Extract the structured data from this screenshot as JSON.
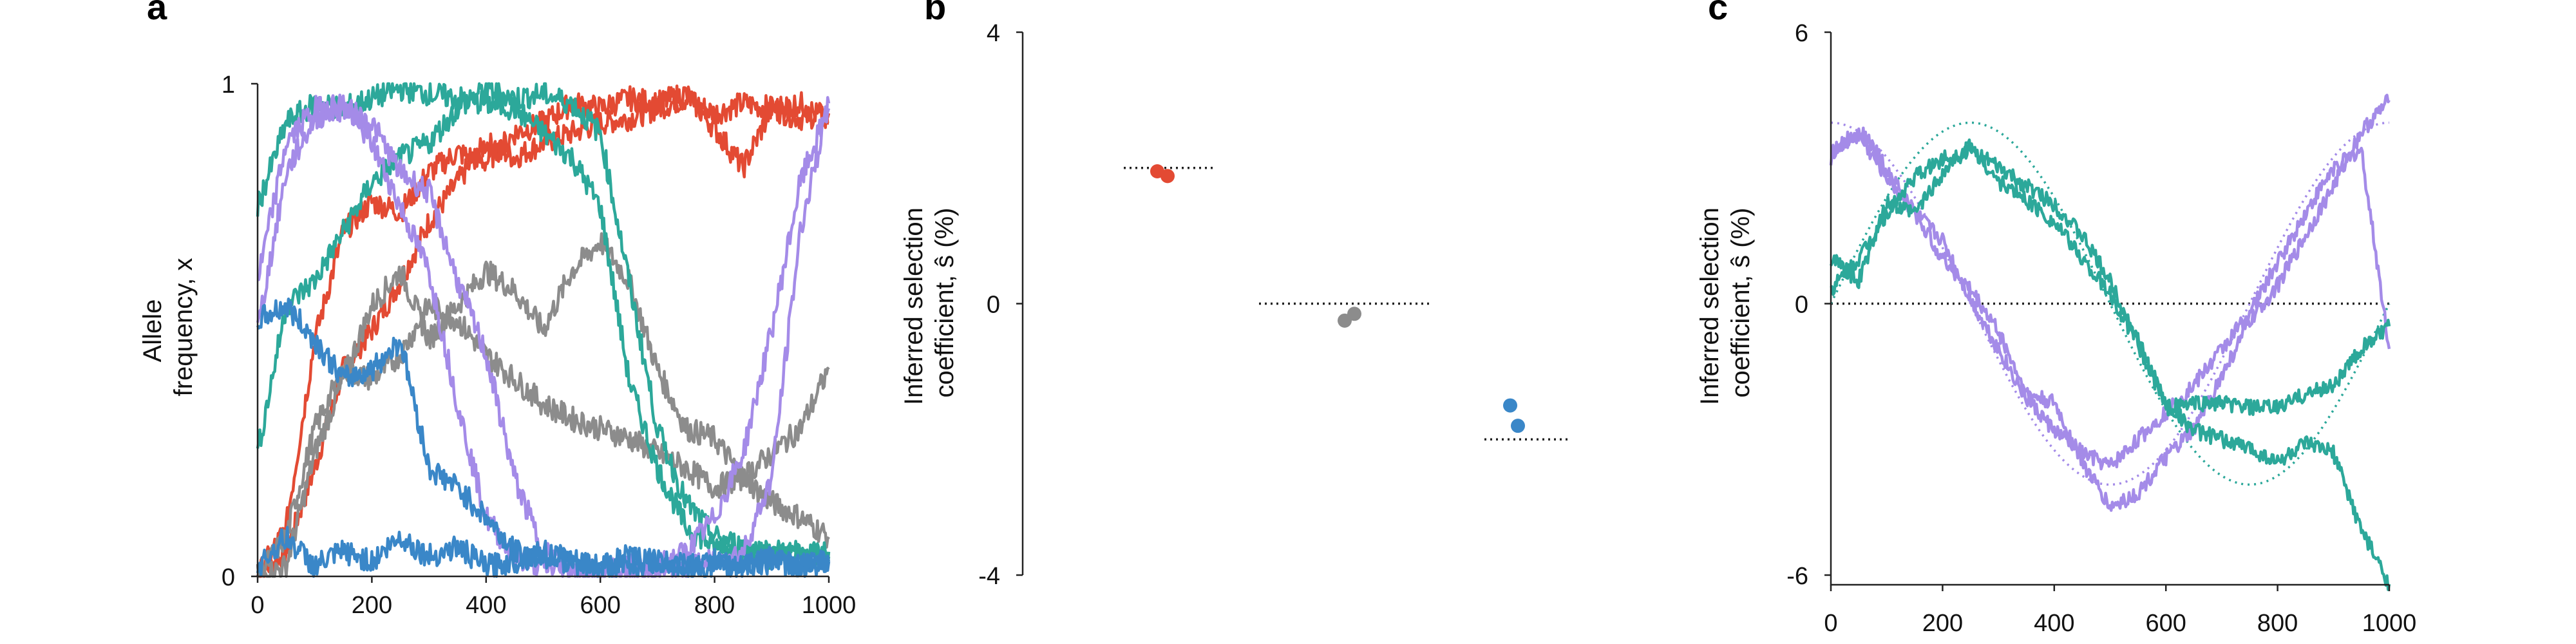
{
  "chart_data": [
    {
      "panel_label": "a",
      "type": "line",
      "ylabel": [
        "Allele",
        "frequency, x"
      ],
      "xlim": [
        0,
        1000
      ],
      "ylim": [
        0,
        1
      ],
      "x_ticks": [
        "0",
        "200",
        "400",
        "600",
        "800",
        "1000"
      ],
      "y_ticks": [
        "0",
        "1"
      ],
      "colors": {
        "red": "#e34a33",
        "gray": "#8c8c8c",
        "teal": "#2ca89a",
        "purple": "#a48be8",
        "blue": "#3a87c8"
      },
      "series": [
        {
          "color": "red",
          "x": [
            0,
            50,
            100,
            150,
            200,
            250,
            300,
            350,
            400,
            450,
            500,
            550,
            600,
            650,
            700,
            750,
            800,
            850,
            900,
            950,
            1000
          ],
          "y": [
            0.0,
            0.05,
            0.22,
            0.42,
            0.5,
            0.6,
            0.72,
            0.8,
            0.88,
            0.85,
            0.88,
            0.9,
            0.92,
            0.93,
            0.95,
            0.97,
            0.94,
            0.96,
            0.95,
            0.93,
            0.94
          ]
        },
        {
          "color": "red",
          "x": [
            0,
            50,
            100,
            150,
            200,
            250,
            300,
            350,
            400,
            450,
            500,
            550,
            600,
            650,
            700,
            750,
            800,
            850,
            900,
            950,
            1000
          ],
          "y": [
            0.0,
            0.1,
            0.48,
            0.7,
            0.76,
            0.74,
            0.82,
            0.86,
            0.84,
            0.9,
            0.92,
            0.96,
            0.95,
            0.97,
            0.96,
            0.98,
            0.91,
            0.83,
            0.95,
            0.96,
            0.92
          ]
        },
        {
          "color": "gray",
          "x": [
            0,
            50,
            100,
            150,
            200,
            250,
            300,
            350,
            400,
            450,
            500,
            550,
            600,
            650,
            700,
            750,
            800,
            850,
            900,
            950,
            1000
          ],
          "y": [
            0.0,
            0.02,
            0.25,
            0.4,
            0.55,
            0.62,
            0.48,
            0.55,
            0.62,
            0.58,
            0.5,
            0.62,
            0.68,
            0.6,
            0.42,
            0.3,
            0.28,
            0.2,
            0.15,
            0.12,
            0.08
          ]
        },
        {
          "color": "gray",
          "x": [
            0,
            50,
            100,
            150,
            200,
            250,
            300,
            350,
            400,
            450,
            500,
            550,
            600,
            650,
            700,
            750,
            800,
            850,
            900,
            950,
            1000
          ],
          "y": [
            0.0,
            0.08,
            0.3,
            0.42,
            0.4,
            0.45,
            0.55,
            0.52,
            0.45,
            0.4,
            0.35,
            0.32,
            0.3,
            0.28,
            0.25,
            0.22,
            0.18,
            0.2,
            0.25,
            0.3,
            0.42
          ]
        },
        {
          "color": "teal",
          "x": [
            0,
            50,
            100,
            150,
            200,
            250,
            300,
            350,
            400,
            450,
            500,
            550,
            600,
            650,
            700,
            750,
            800,
            850,
            900,
            950,
            1000
          ],
          "y": [
            0.75,
            0.92,
            0.96,
            0.95,
            0.97,
            0.99,
            0.98,
            0.97,
            0.96,
            0.95,
            0.9,
            0.85,
            0.75,
            0.4,
            0.22,
            0.1,
            0.06,
            0.05,
            0.04,
            0.04,
            0.05
          ]
        },
        {
          "color": "teal",
          "x": [
            0,
            50,
            100,
            150,
            200,
            250,
            300,
            350,
            400,
            450,
            500,
            550,
            600,
            650,
            700,
            750,
            800,
            850,
            900,
            950,
            1000
          ],
          "y": [
            0.25,
            0.55,
            0.6,
            0.7,
            0.8,
            0.85,
            0.88,
            0.95,
            0.99,
            0.97,
            0.98,
            0.96,
            0.9,
            0.6,
            0.3,
            0.15,
            0.08,
            0.06,
            0.05,
            0.05,
            0.04
          ]
        },
        {
          "color": "purple",
          "x": [
            0,
            50,
            100,
            150,
            200,
            250,
            300,
            350,
            400,
            450,
            500,
            550,
            600,
            650,
            700,
            750,
            800,
            850,
            900,
            950,
            1000
          ],
          "y": [
            0.5,
            0.82,
            0.93,
            0.95,
            0.92,
            0.82,
            0.78,
            0.6,
            0.45,
            0.2,
            0.05,
            0.02,
            0.01,
            0.01,
            0.02,
            0.05,
            0.12,
            0.25,
            0.5,
            0.8,
            0.95
          ]
        },
        {
          "color": "purple",
          "x": [
            0,
            50,
            100,
            150,
            200,
            250,
            300,
            350,
            400,
            450,
            500,
            550,
            600,
            650,
            700,
            750,
            800,
            850,
            900,
            950,
            1000
          ],
          "y": [
            0.6,
            0.88,
            0.95,
            0.96,
            0.88,
            0.75,
            0.62,
            0.35,
            0.12,
            0.04,
            0.02,
            0.01,
            0.01,
            0.02,
            0.01,
            0.02,
            0.03,
            0.05,
            0.2,
            0.7,
            0.96
          ]
        },
        {
          "color": "blue",
          "x": [
            0,
            50,
            100,
            150,
            200,
            250,
            300,
            350,
            400,
            450,
            500,
            550,
            600,
            650,
            700,
            750,
            800,
            850,
            900,
            950,
            1000
          ],
          "y": [
            0.52,
            0.55,
            0.48,
            0.4,
            0.42,
            0.48,
            0.22,
            0.18,
            0.12,
            0.05,
            0.04,
            0.03,
            0.02,
            0.02,
            0.03,
            0.02,
            0.02,
            0.02,
            0.03,
            0.02,
            0.03
          ]
        },
        {
          "color": "blue",
          "x": [
            0,
            50,
            100,
            150,
            200,
            250,
            300,
            350,
            400,
            450,
            500,
            550,
            600,
            650,
            700,
            750,
            800,
            850,
            900,
            950,
            1000
          ],
          "y": [
            0.02,
            0.08,
            0.02,
            0.05,
            0.03,
            0.08,
            0.04,
            0.06,
            0.02,
            0.03,
            0.05,
            0.03,
            0.02,
            0.04,
            0.03,
            0.02,
            0.03,
            0.02,
            0.04,
            0.02,
            0.03
          ]
        }
      ]
    },
    {
      "panel_label": "b",
      "type": "scatter",
      "ylabel": [
        "Inferred selection",
        "coefficient, ŝ (%)"
      ],
      "ylim": [
        -4,
        4
      ],
      "y_ticks": [
        "4",
        "0",
        "-4"
      ],
      "groups": [
        {
          "color": "red",
          "true_value": 2.0,
          "points": [
            1.95,
            1.88
          ]
        },
        {
          "color": "gray",
          "true_value": 0.0,
          "points": [
            -0.25,
            -0.15
          ]
        },
        {
          "color": "blue",
          "true_value": -2.0,
          "points": [
            -1.5,
            -1.8
          ]
        }
      ]
    },
    {
      "panel_label": "c",
      "type": "line",
      "ylabel": [
        "Inferred selection",
        "coefficient, ŝ (%)"
      ],
      "xlim": [
        0,
        1000
      ],
      "ylim": [
        -6,
        6
      ],
      "x_ticks": [
        "0",
        "200",
        "400",
        "600",
        "800",
        "1000"
      ],
      "y_ticks": [
        "6",
        "0",
        "-6"
      ],
      "true_curves": [
        {
          "color": "purple",
          "amplitude": 4,
          "phase_deg": 90,
          "period": 1000
        },
        {
          "color": "teal",
          "amplitude": 4,
          "phase_deg": 0,
          "period": 1000
        }
      ],
      "series": [
        {
          "color": "purple",
          "x": [
            0,
            50,
            100,
            150,
            200,
            250,
            300,
            350,
            400,
            450,
            500,
            550,
            600,
            650,
            700,
            750,
            800,
            850,
            900,
            950,
            1000
          ],
          "y": [
            3.2,
            3.9,
            3.0,
            2.0,
            1.0,
            0.3,
            -0.6,
            -2.0,
            -2.2,
            -3.5,
            -4.5,
            -4.2,
            -3.4,
            -2.8,
            -1.6,
            -0.4,
            0.4,
            1.5,
            2.6,
            3.8,
            4.5
          ]
        },
        {
          "color": "purple",
          "x": [
            0,
            50,
            100,
            150,
            200,
            250,
            300,
            350,
            400,
            450,
            500,
            550,
            600,
            650,
            700,
            750,
            800,
            850,
            900,
            950,
            1000
          ],
          "y": [
            3.4,
            3.7,
            2.8,
            2.0,
            1.4,
            0.1,
            -1.0,
            -2.1,
            -2.8,
            -3.3,
            -3.6,
            -3.0,
            -2.4,
            -1.8,
            -1.0,
            -0.2,
            0.9,
            2.0,
            3.0,
            3.4,
            -1.0
          ]
        },
        {
          "color": "teal",
          "x": [
            0,
            50,
            100,
            150,
            200,
            250,
            300,
            350,
            400,
            450,
            500,
            550,
            600,
            650,
            700,
            750,
            800,
            850,
            900,
            950,
            1000
          ],
          "y": [
            0.3,
            1.0,
            2.0,
            2.8,
            3.2,
            3.4,
            3.0,
            2.6,
            2.2,
            1.5,
            0.5,
            -0.8,
            -2.2,
            -2.8,
            -3.0,
            -3.2,
            -3.5,
            -3.1,
            -3.3,
            -5.0,
            -6.2
          ]
        },
        {
          "color": "teal",
          "x": [
            0,
            50,
            100,
            150,
            200,
            250,
            300,
            350,
            400,
            450,
            500,
            550,
            600,
            650,
            700,
            750,
            800,
            850,
            900,
            950,
            1000
          ],
          "y": [
            1.0,
            0.5,
            2.2,
            2.0,
            2.9,
            3.5,
            2.7,
            2.3,
            1.8,
            1.0,
            0.2,
            -0.9,
            -2.3,
            -2.2,
            -2.2,
            -2.3,
            -2.3,
            -2.0,
            -1.8,
            -1.0,
            -0.5
          ]
        }
      ]
    }
  ]
}
